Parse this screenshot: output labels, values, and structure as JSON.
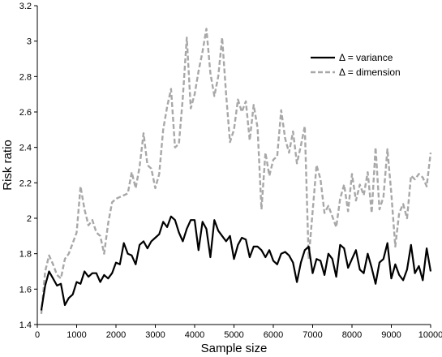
{
  "chart_data": {
    "type": "line",
    "xlabel": "Sample size",
    "ylabel": "Risk ratio",
    "xlim": [
      0,
      10000
    ],
    "ylim": [
      1.4,
      3.2
    ],
    "xticks": [
      0,
      1000,
      2000,
      3000,
      4000,
      5000,
      6000,
      7000,
      8000,
      9000,
      10000
    ],
    "yticks": [
      1.4,
      1.6,
      1.8,
      2,
      2.2,
      2.4,
      2.6,
      2.8,
      3,
      3.2
    ],
    "xtick_labels": [
      "0",
      "1000",
      "2000",
      "3000",
      "4000",
      "5000",
      "6000",
      "7000",
      "8000",
      "9000",
      "10000"
    ],
    "ytick_labels": [
      "1.4",
      "1.6",
      "1.8",
      "2",
      "2.2",
      "2.4",
      "2.6",
      "2.8",
      "3",
      "3.2"
    ],
    "grid": false,
    "legend_position": "top-right",
    "x": [
      100,
      200,
      300,
      400,
      500,
      600,
      700,
      800,
      900,
      1000,
      1100,
      1200,
      1300,
      1400,
      1500,
      1600,
      1700,
      1800,
      1900,
      2000,
      2100,
      2200,
      2300,
      2400,
      2500,
      2600,
      2700,
      2800,
      2900,
      3000,
      3100,
      3200,
      3300,
      3400,
      3500,
      3600,
      3700,
      3800,
      3900,
      4000,
      4100,
      4200,
      4300,
      4400,
      4500,
      4600,
      4700,
      4800,
      4900,
      5000,
      5100,
      5200,
      5300,
      5400,
      5500,
      5600,
      5700,
      5800,
      5900,
      6000,
      6100,
      6200,
      6300,
      6400,
      6500,
      6600,
      6700,
      6800,
      6900,
      7000,
      7100,
      7200,
      7300,
      7400,
      7500,
      7600,
      7700,
      7800,
      7900,
      8000,
      8100,
      8200,
      8300,
      8400,
      8500,
      8600,
      8700,
      8800,
      8900,
      9000,
      9100,
      9200,
      9300,
      9400,
      9500,
      9600,
      9700,
      9800,
      9900,
      10000
    ],
    "series": [
      {
        "name": "Δ = variance",
        "color": "#000000",
        "dash": "solid",
        "values": [
          1.48,
          1.62,
          1.7,
          1.66,
          1.62,
          1.63,
          1.51,
          1.55,
          1.57,
          1.64,
          1.63,
          1.7,
          1.67,
          1.69,
          1.69,
          1.64,
          1.68,
          1.66,
          1.69,
          1.75,
          1.74,
          1.86,
          1.8,
          1.79,
          1.74,
          1.85,
          1.87,
          1.83,
          1.87,
          1.89,
          1.91,
          1.98,
          1.95,
          2.01,
          1.99,
          1.92,
          1.87,
          1.94,
          1.99,
          1.99,
          1.82,
          1.98,
          1.94,
          1.78,
          1.99,
          1.93,
          1.9,
          1.87,
          1.9,
          1.77,
          1.85,
          1.89,
          1.88,
          1.78,
          1.84,
          1.84,
          1.82,
          1.78,
          1.82,
          1.76,
          1.74,
          1.8,
          1.81,
          1.79,
          1.75,
          1.64,
          1.75,
          1.82,
          1.84,
          1.69,
          1.77,
          1.76,
          1.68,
          1.8,
          1.77,
          1.67,
          1.85,
          1.83,
          1.72,
          1.77,
          1.82,
          1.71,
          1.69,
          1.8,
          1.72,
          1.63,
          1.75,
          1.77,
          1.86,
          1.66,
          1.74,
          1.68,
          1.65,
          1.71,
          1.85,
          1.69,
          1.73,
          1.65,
          1.83,
          1.7
        ]
      },
      {
        "name": "Δ = dimension",
        "color": "#a8a8a8",
        "dash": "dashed",
        "values": [
          1.46,
          1.7,
          1.79,
          1.74,
          1.68,
          1.66,
          1.77,
          1.8,
          1.86,
          1.92,
          2.18,
          2.05,
          1.96,
          1.99,
          1.92,
          1.9,
          1.8,
          1.97,
          2.09,
          2.11,
          2.12,
          2.13,
          2.14,
          2.26,
          2.17,
          2.29,
          2.48,
          2.3,
          2.28,
          2.17,
          2.25,
          2.5,
          2.63,
          2.73,
          2.4,
          2.42,
          2.68,
          3.02,
          2.62,
          2.7,
          2.83,
          2.94,
          3.07,
          2.82,
          2.69,
          2.8,
          3.02,
          2.7,
          2.43,
          2.5,
          2.67,
          2.6,
          2.66,
          2.44,
          2.64,
          2.51,
          2.05,
          2.37,
          2.24,
          2.33,
          2.35,
          2.61,
          2.45,
          2.37,
          2.49,
          2.31,
          2.41,
          2.52,
          1.77,
          2.04,
          2.3,
          2.22,
          2.03,
          2.07,
          2.01,
          1.95,
          2.11,
          2.19,
          2.04,
          2.25,
          2.1,
          2.19,
          2.13,
          2.26,
          2.03,
          2.4,
          2.05,
          2.12,
          2.39,
          2.14,
          1.84,
          2.03,
          2.08,
          2.0,
          2.24,
          2.22,
          2.25,
          2.23,
          2.18,
          2.37
        ]
      }
    ]
  }
}
